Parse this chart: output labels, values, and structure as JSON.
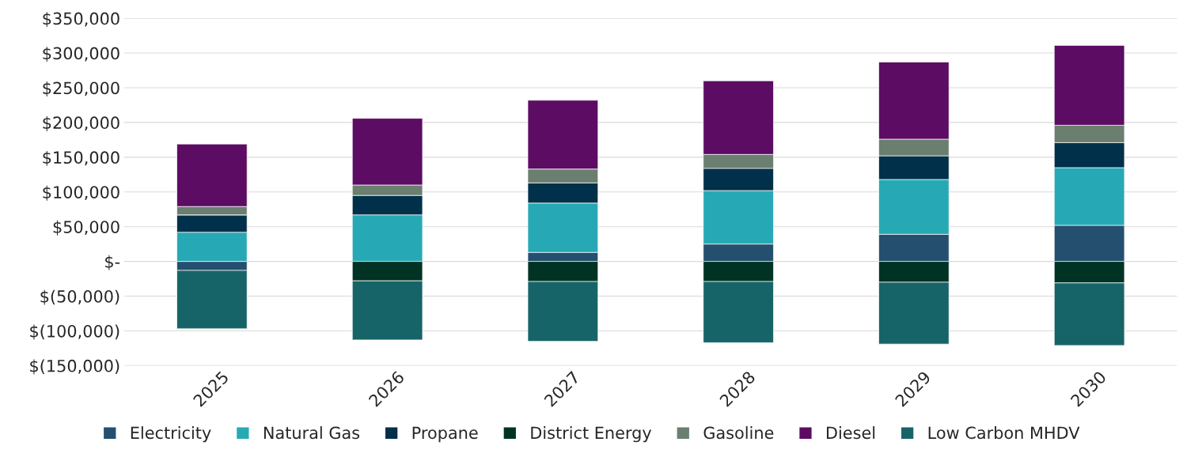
{
  "chart_data": {
    "type": "bar",
    "stacked": true,
    "categories": [
      "2025",
      "2026",
      "2027",
      "2028",
      "2029",
      "2030"
    ],
    "series": [
      {
        "name": "Electricity",
        "color": "#254f6e",
        "values": [
          -13000,
          0,
          13000,
          25000,
          39000,
          52000
        ]
      },
      {
        "name": "Natural Gas",
        "color": "#27a9b5",
        "values": [
          42000,
          67000,
          71000,
          77000,
          79000,
          83000
        ]
      },
      {
        "name": "Propane",
        "color": "#00304a",
        "values": [
          25000,
          28000,
          29000,
          32000,
          34000,
          36000
        ]
      },
      {
        "name": "District Energy",
        "color": "#003324",
        "values": [
          0,
          -28000,
          -29000,
          -29000,
          -30000,
          -31000
        ]
      },
      {
        "name": "Gasoline",
        "color": "#6a7f6f",
        "values": [
          12000,
          15000,
          20000,
          20000,
          24000,
          25000
        ]
      },
      {
        "name": "Diesel",
        "color": "#5c0c63",
        "values": [
          90000,
          96000,
          99000,
          106000,
          111000,
          115000
        ]
      },
      {
        "name": "Low Carbon MHDV",
        "color": "#176468",
        "values": [
          -84000,
          -85000,
          -86000,
          -88000,
          -89000,
          -90000
        ]
      }
    ],
    "ylim": [
      -150000,
      350000
    ],
    "yticks": [
      {
        "value": -150000,
        "label": "$(150,000)"
      },
      {
        "value": -100000,
        "label": "$(100,000)"
      },
      {
        "value": -50000,
        "label": "$(50,000)"
      },
      {
        "value": 0,
        "label": "$-"
      },
      {
        "value": 50000,
        "label": "$50,000"
      },
      {
        "value": 100000,
        "label": "$100,000"
      },
      {
        "value": 150000,
        "label": "$150,000"
      },
      {
        "value": 200000,
        "label": "$200,000"
      },
      {
        "value": 250000,
        "label": "$250,000"
      },
      {
        "value": 300000,
        "label": "$300,000"
      },
      {
        "value": 350000,
        "label": "$350,000"
      }
    ],
    "grid": "y",
    "legend": "bottom"
  }
}
